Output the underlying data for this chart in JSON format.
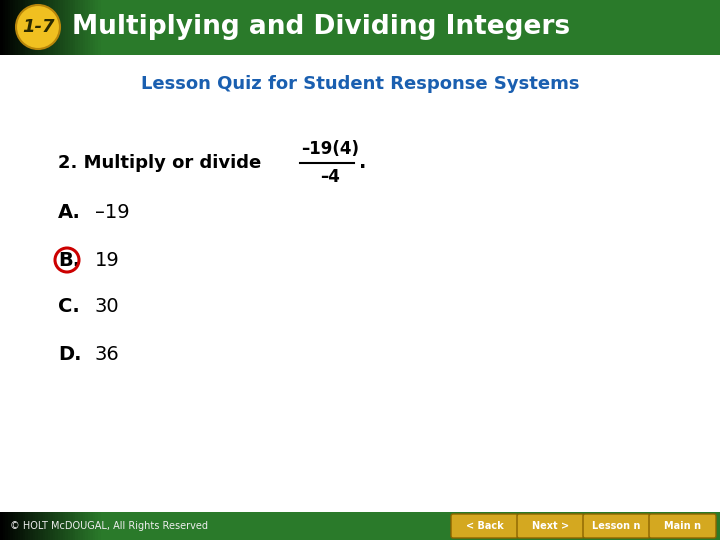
{
  "header_bg_color": "#2a7a2a",
  "header_gradient_left": "#1a1a1a",
  "header_text_color": "#ffffff",
  "header_badge_bg": "#f0c020",
  "header_badge_text": "1-7",
  "header_title": "Multiplying and Dividing Integers",
  "subtitle": "Lesson Quiz for Student Response Systems",
  "subtitle_color": "#1a5fb0",
  "question_prefix": "2. Multiply or divide",
  "fraction_numerator": "–19(4)",
  "fraction_denominator": "–4",
  "answer_a_label": "A.",
  "answer_a_text": "–19",
  "answer_b_label": "B.",
  "answer_b_text": "19",
  "answer_c_label": "C.",
  "answer_c_text": "30",
  "answer_d_label": "D.",
  "answer_d_text": "36",
  "circle_color": "#cc0000",
  "text_color": "#000000",
  "bg_color": "#ffffff",
  "footer_text": "© HOLT McDOUGAL, All Rights Reserved",
  "footer_bg_color": "#2a7a2a",
  "button_bg": "#d4a820",
  "button_text_color": "#ffffff",
  "buttons": [
    "< Back",
    "Next >",
    "Lesson n",
    "Main n"
  ]
}
